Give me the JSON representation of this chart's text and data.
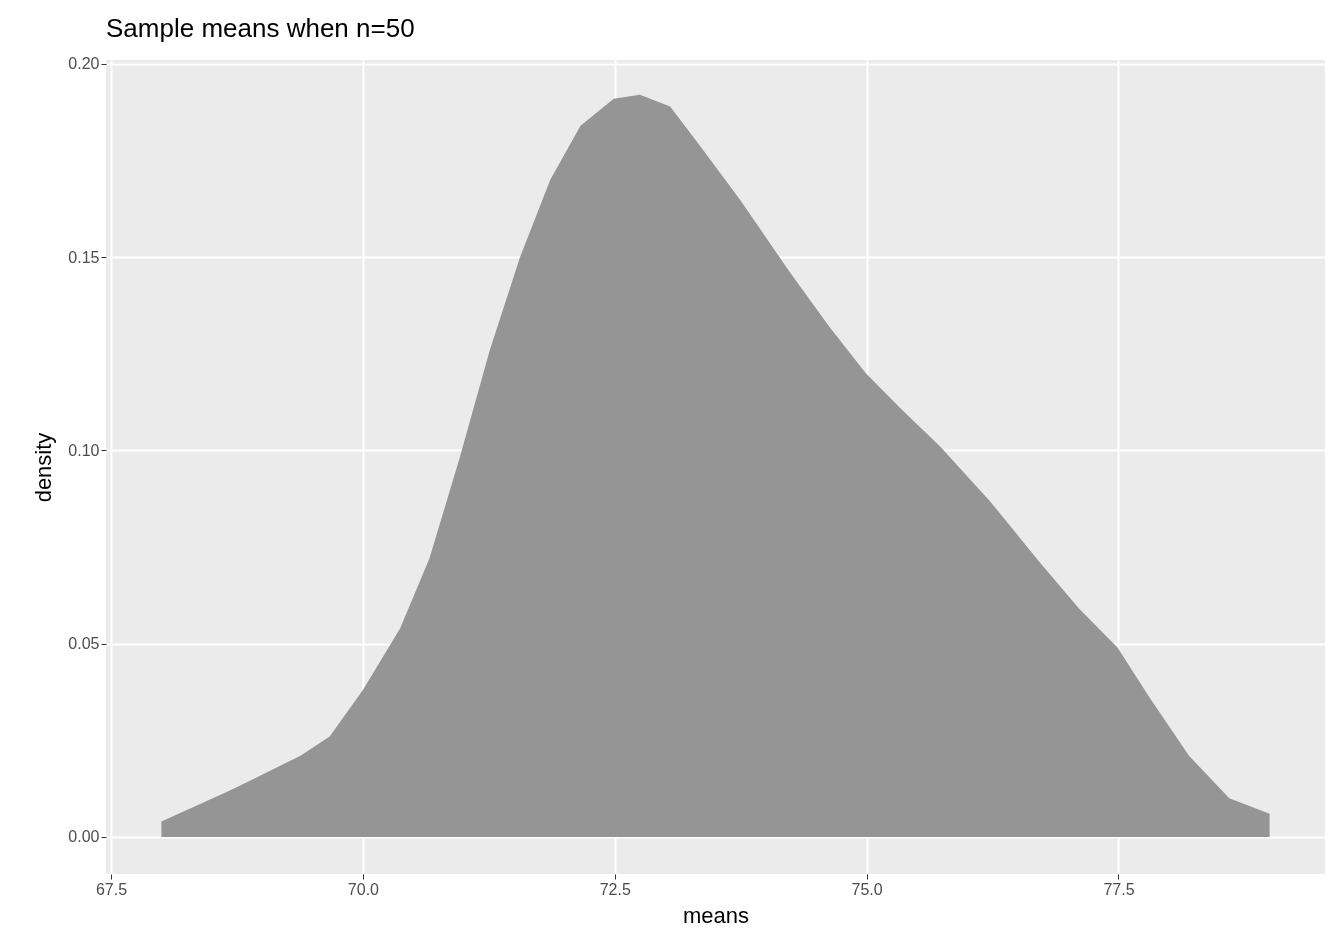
{
  "chart_data": {
    "type": "area",
    "title": "Sample means when n=50",
    "xlabel": "means",
    "ylabel": "density",
    "x": [
      68.0,
      68.68,
      69.38,
      69.67,
      70.0,
      70.37,
      70.66,
      70.96,
      71.26,
      71.56,
      71.86,
      72.16,
      72.49,
      72.75,
      73.05,
      73.34,
      73.74,
      74.24,
      74.63,
      74.99,
      75.33,
      75.73,
      76.22,
      76.72,
      77.11,
      77.49,
      77.81,
      78.2,
      78.6,
      79.0
    ],
    "series": [
      {
        "color": "#959595",
        "values": [
          0.004,
          0.012,
          0.021,
          0.026,
          0.038,
          0.054,
          0.072,
          0.098,
          0.126,
          0.15,
          0.17,
          0.184,
          0.191,
          0.192,
          0.189,
          0.179,
          0.165,
          0.146,
          0.132,
          0.12,
          0.111,
          0.101,
          0.087,
          0.071,
          0.059,
          0.049,
          0.036,
          0.021,
          0.01,
          0.006
        ]
      }
    ],
    "xlim": [
      67.45,
      79.55
    ],
    "ylim": [
      -0.0096,
      0.201
    ],
    "xticks": [
      67.5,
      {
        "value": 70,
        "label": "70.0"
      },
      72.5,
      {
        "value": 75,
        "label": "75.0"
      },
      77.5
    ],
    "yticks": [
      {
        "value": 0,
        "label": "0.00"
      },
      {
        "value": 0.05,
        "label": "0.05"
      },
      {
        "value": 0.1,
        "label": "0.10"
      },
      {
        "value": 0.15,
        "label": "0.15"
      },
      {
        "value": 0.2,
        "label": "0.20"
      }
    ],
    "grid": true
  }
}
